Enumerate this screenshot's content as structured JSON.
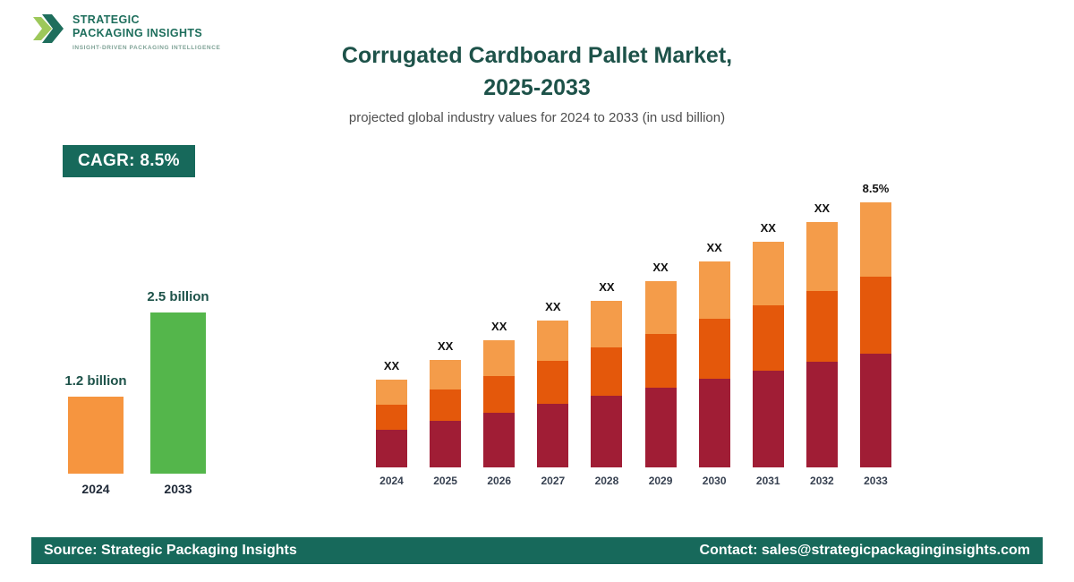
{
  "logo": {
    "name_line1": "STRATEGIC",
    "name_line2": "PACKAGING INSIGHTS",
    "tagline": "INSIGHT-DRIVEN PACKAGING INTELLIGENCE"
  },
  "header": {
    "title_line1": "Corrugated Cardboard Pallet Market,",
    "title_line2": "2025-2033",
    "subtitle": "projected global industry values for 2024 to 2033 (in usd billion)"
  },
  "cagr_badge": {
    "label": "CAGR: 8.5%"
  },
  "footer": {
    "source": "Source: Strategic Packaging Insights",
    "contact": "Contact: sales@strategicpackaginginsights.com"
  },
  "colors": {
    "brand_green": "#17695B",
    "title_teal": "#1D5249",
    "mini_bar_2024": "#F6953F",
    "mini_bar_2033": "#54B64B",
    "stack_bottom": "#A01D35",
    "stack_middle": "#E4580B",
    "stack_top": "#F49C4A"
  },
  "chart_data": [
    {
      "type": "bar",
      "title": "",
      "categories": [
        "2024",
        "2033"
      ],
      "values": [
        1.2,
        2.5
      ],
      "value_labels": [
        "1.2 billion",
        "2.5 billion"
      ],
      "bar_colors": [
        "#F6953F",
        "#54B64B"
      ],
      "ylim": [
        0,
        2.5
      ],
      "grid": false,
      "legend": "none"
    },
    {
      "type": "bar",
      "stacked": true,
      "title": "",
      "categories": [
        "2024",
        "2025",
        "2026",
        "2027",
        "2028",
        "2029",
        "2030",
        "2031",
        "2032",
        "2033"
      ],
      "series": [
        {
          "name": "bottom-segment",
          "color": "#A01D35",
          "values": [
            42,
            52,
            61,
            71,
            80,
            89,
            99,
            108,
            118,
            127
          ]
        },
        {
          "name": "middle-segment",
          "color": "#E4580B",
          "values": [
            28,
            35,
            41,
            48,
            54,
            60,
            67,
            73,
            79,
            86
          ]
        },
        {
          "name": "top-segment",
          "color": "#F49C4A",
          "values": [
            28,
            33,
            40,
            45,
            52,
            59,
            64,
            71,
            77,
            83
          ]
        }
      ],
      "bar_labels": [
        "XX",
        "XX",
        "XX",
        "XX",
        "XX",
        "XX",
        "XX",
        "XX",
        "XX",
        "8.5%"
      ],
      "grid": false,
      "legend": "none"
    }
  ]
}
